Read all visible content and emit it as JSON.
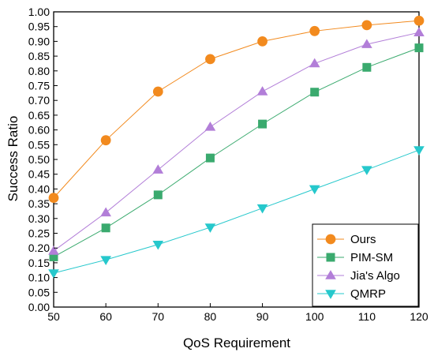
{
  "chart_data": {
    "type": "line",
    "xlabel": "QoS Requirement",
    "ylabel": "Success Ratio",
    "xlim": [
      50,
      120
    ],
    "ylim": [
      0.0,
      1.0
    ],
    "xticks": [
      "50",
      "60",
      "70",
      "80",
      "90",
      "100",
      "110",
      "120"
    ],
    "yticks": [
      "0.00",
      "0.05",
      "0.10",
      "0.15",
      "0.20",
      "0.25",
      "0.30",
      "0.35",
      "0.40",
      "0.45",
      "0.50",
      "0.55",
      "0.60",
      "0.65",
      "0.70",
      "0.75",
      "0.80",
      "0.85",
      "0.90",
      "0.95",
      "1.00"
    ],
    "grid": false,
    "legend_position": "bottom-right",
    "x": [
      50,
      60,
      70,
      80,
      90,
      100,
      110,
      120
    ],
    "series": [
      {
        "name": "Ours",
        "marker": "circle",
        "color": "#f28a1e",
        "values": [
          0.37,
          0.565,
          0.73,
          0.84,
          0.9,
          0.935,
          0.955,
          0.97
        ]
      },
      {
        "name": "PIM-SM",
        "marker": "square",
        "color": "#3aaa6e",
        "values": [
          0.17,
          0.268,
          0.38,
          0.505,
          0.62,
          0.728,
          0.812,
          0.878
        ]
      },
      {
        "name": "Jia's Algo",
        "marker": "triangle-up",
        "color": "#b27ed8",
        "values": [
          0.19,
          0.32,
          0.465,
          0.61,
          0.73,
          0.825,
          0.89,
          0.93
        ]
      },
      {
        "name": "QMRP",
        "marker": "triangle-down",
        "color": "#26c8cc",
        "values": [
          0.115,
          0.16,
          0.212,
          0.27,
          0.335,
          0.4,
          0.465,
          0.532
        ]
      }
    ]
  }
}
